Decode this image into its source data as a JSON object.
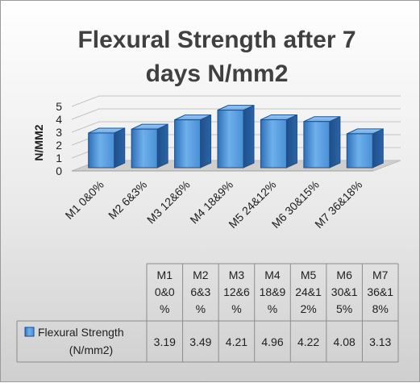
{
  "chart_data": {
    "type": "bar",
    "title": "Flexural Strength after  7 days N/mm2",
    "title_lines": [
      "Flexural Strength after  7",
      "days N/mm2"
    ],
    "ylabel": "N/MM2",
    "xlabel": "",
    "ylim": [
      0,
      5
    ],
    "yticks": [
      "0",
      "1",
      "2",
      "3",
      "4",
      "5"
    ],
    "grid": true,
    "categories": [
      "M1 0&0%",
      "M2 6&3%",
      "M3 12&6%",
      "M4 18&9%",
      "M5 24&12%",
      "M6 30&15%",
      "M7 36&18%"
    ],
    "table_headers": [
      [
        "M1",
        "0&0",
        "%"
      ],
      [
        "M2",
        "6&3",
        "%"
      ],
      [
        "M3",
        "12&6",
        "%"
      ],
      [
        "M4",
        "18&9",
        "%"
      ],
      [
        "M5",
        "24&1",
        "2%"
      ],
      [
        "M6",
        "30&1",
        "5%"
      ],
      [
        "M7",
        "36&1",
        "8%"
      ]
    ],
    "series": [
      {
        "name": "Flexural Strength (N/mm2)",
        "name_lines": [
          "Flexural Strength",
          "(N/mm2)"
        ],
        "values": [
          3.19,
          3.49,
          4.21,
          4.96,
          4.22,
          4.08,
          3.13
        ],
        "labels": [
          "3.19",
          "3.49",
          "4.21",
          "4.96",
          "4.22",
          "4.08",
          "3.13"
        ],
        "color": "#4a90d9"
      }
    ],
    "legend": "data-table"
  }
}
